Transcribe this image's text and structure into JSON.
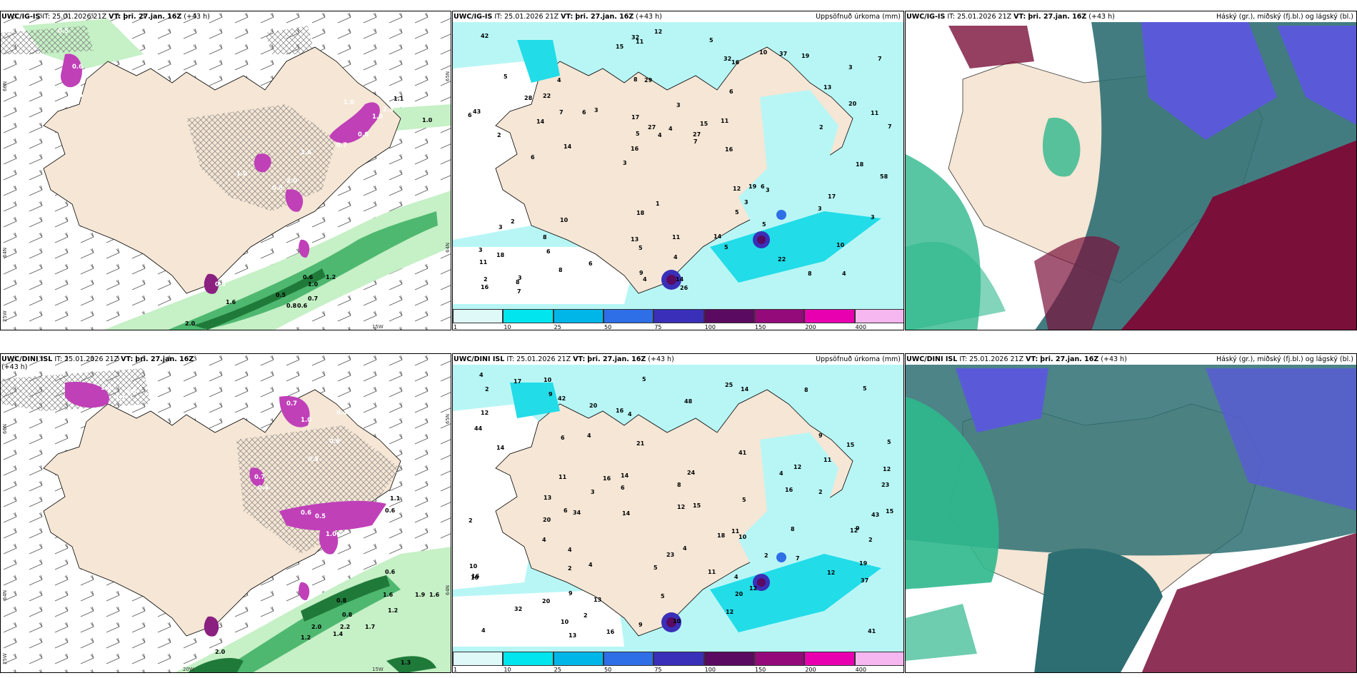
{
  "panels": {
    "top_left": {
      "model": "UWC/IG-IS",
      "it": "IT: 25.01.2026 21Z",
      "vt_label": "VT:",
      "vt": "þri. 27.jan. 16Z",
      "lead": "(+43 h)",
      "lats": [
        "66N",
        "64N",
        "25W"
      ],
      "lats_right": [
        "65N",
        "64N"
      ],
      "lons": [
        "15W"
      ],
      "values": [
        "0.5",
        "0.8",
        "0.6",
        "0.5",
        "1.0",
        "1.6",
        "0.7",
        "0.6",
        "0.8",
        "1.0",
        "0.9",
        "1.0",
        "2.0",
        "0.6",
        "1.2",
        "0.5",
        "1.0",
        "0.7",
        "0.8",
        "0.6",
        "1.6",
        "0.6",
        "2.0",
        "2.3",
        "1.1",
        "1.0"
      ]
    },
    "top_mid": {
      "model": "UWC/IG-IS",
      "it": "IT: 25.01.2026 21Z",
      "vt_label": "VT:",
      "vt": "þri. 27.jan. 16Z",
      "lead": "(+43 h)",
      "right_title": "Uppsöfnuð úrkoma (mm)",
      "values": [
        "4",
        "2",
        "3",
        "3",
        "6",
        "3",
        "8",
        "3",
        "2",
        "3",
        "11",
        "6",
        "29",
        "15",
        "3",
        "5",
        "11",
        "7",
        "12",
        "20",
        "16",
        "13",
        "5",
        "4",
        "10",
        "10",
        "8",
        "10",
        "6",
        "26",
        "6",
        "14",
        "5",
        "8",
        "11",
        "27",
        "2",
        "5",
        "7",
        "3",
        "13",
        "7",
        "3",
        "5",
        "8",
        "7",
        "16",
        "11",
        "19",
        "12",
        "14",
        "43",
        "22",
        "37",
        "8",
        "5",
        "15",
        "27",
        "3",
        "18",
        "6",
        "19",
        "7",
        "3",
        "42",
        "28",
        "58",
        "17",
        "4",
        "4",
        "18",
        "16",
        "17",
        "9",
        "2",
        "1",
        "22",
        "14",
        "14",
        "32",
        "18",
        "11",
        "5",
        "4",
        "3",
        "6",
        "4",
        "32",
        "16",
        "6"
      ]
    },
    "top_right": {
      "model": "UWC/IG-IS",
      "it": "IT: 25.01.2026 21Z",
      "vt_label": "VT:",
      "vt": "þri. 27.jan. 16Z",
      "lead": "(+43 h)",
      "right_title": "Háský (gr.), miðský (fj.bl.) og lágský (bl.)"
    },
    "bot_left": {
      "model": "UWC/DINI ISL",
      "it": "IT: 25.01.2026 21Z",
      "vt_label": "VT:",
      "vt": "þri. 27.jan. 16Z",
      "lead": "(+43 h)",
      "lats": [
        "66N",
        "64N",
        "25W"
      ],
      "lats_right": [
        "65N",
        "64N"
      ],
      "lons": [
        "20W",
        "15W"
      ],
      "values": [
        "0.5",
        "1.8",
        "1.1",
        "0.7",
        "1.0",
        "0.4",
        "0.6",
        "0.5",
        "0.7",
        "0.4",
        "0.6",
        "0.5",
        "1.1",
        "0.6",
        "1.0",
        "0.8",
        "0.6",
        "0.8",
        "1.6",
        "1.2",
        "1.9",
        "1.6",
        "2.0",
        "2.2",
        "1.2",
        "1.4",
        "2.0",
        "1.7",
        "1.3"
      ]
    },
    "bot_mid": {
      "model": "UWC/DINI ISL",
      "it": "IT: 25.01.2026 21Z",
      "vt_label": "VT:",
      "vt": "þri. 27.jan. 16Z",
      "lead": "(+43 h)",
      "right_title": "Uppsöfnuð úrkoma (mm)",
      "values": [
        "2",
        "4",
        "2",
        "5",
        "5",
        "4",
        "4",
        "4",
        "4",
        "2",
        "2",
        "15",
        "13",
        "4",
        "23",
        "16",
        "5",
        "20",
        "4",
        "14",
        "12",
        "5",
        "2",
        "6",
        "20",
        "4",
        "4",
        "7",
        "9",
        "16",
        "18",
        "20",
        "15",
        "2",
        "12",
        "11",
        "9",
        "6",
        "20",
        "41",
        "6",
        "10",
        "10",
        "21",
        "17",
        "24",
        "9",
        "2",
        "12",
        "14",
        "15",
        "34",
        "10",
        "9",
        "8",
        "12",
        "41",
        "8",
        "9",
        "5",
        "12",
        "43",
        "14",
        "19",
        "4",
        "23",
        "13",
        "48",
        "16",
        "42",
        "25",
        "3",
        "16",
        "14",
        "37",
        "44",
        "32",
        "10",
        "11",
        "13",
        "12",
        "10",
        "12",
        "8",
        "5",
        "11",
        "10",
        "11",
        "12",
        "16"
      ]
    },
    "bot_right": {
      "model": "UWC/DINI ISL",
      "it": "IT: 25.01.2026 21Z",
      "vt_label": "VT:",
      "vt": "þri. 27.jan. 16Z",
      "lead": "(+43 h)",
      "right_title": "Háský (gr.), miðský (fj.bl.) og lágský (bl.)"
    }
  },
  "colorbar": {
    "labels": [
      "1",
      "10",
      "25",
      "50",
      "75",
      "100",
      "150",
      "200",
      "400"
    ],
    "colors": [
      "#dff8f8",
      "#00e5ee",
      "#00b6e8",
      "#2e6ee6",
      "#3a2fb8",
      "#5a0a60",
      "#950a7a",
      "#e800b0",
      "#f6b6f0"
    ]
  },
  "colors": {
    "land": "#f5e6d5",
    "precip_light": "#b8f6f6",
    "precip_mid": "#22dce8",
    "green_light": "#c6f0c6",
    "green_mid": "#4fb870",
    "green_dark": "#1f7a3a",
    "magenta": "#c040b8",
    "cloud_high": "#2fb88c",
    "cloud_mid": "#5a5ad8",
    "cloud_low": "#7a0f3a",
    "cloud_teal": "#2d6e72"
  }
}
